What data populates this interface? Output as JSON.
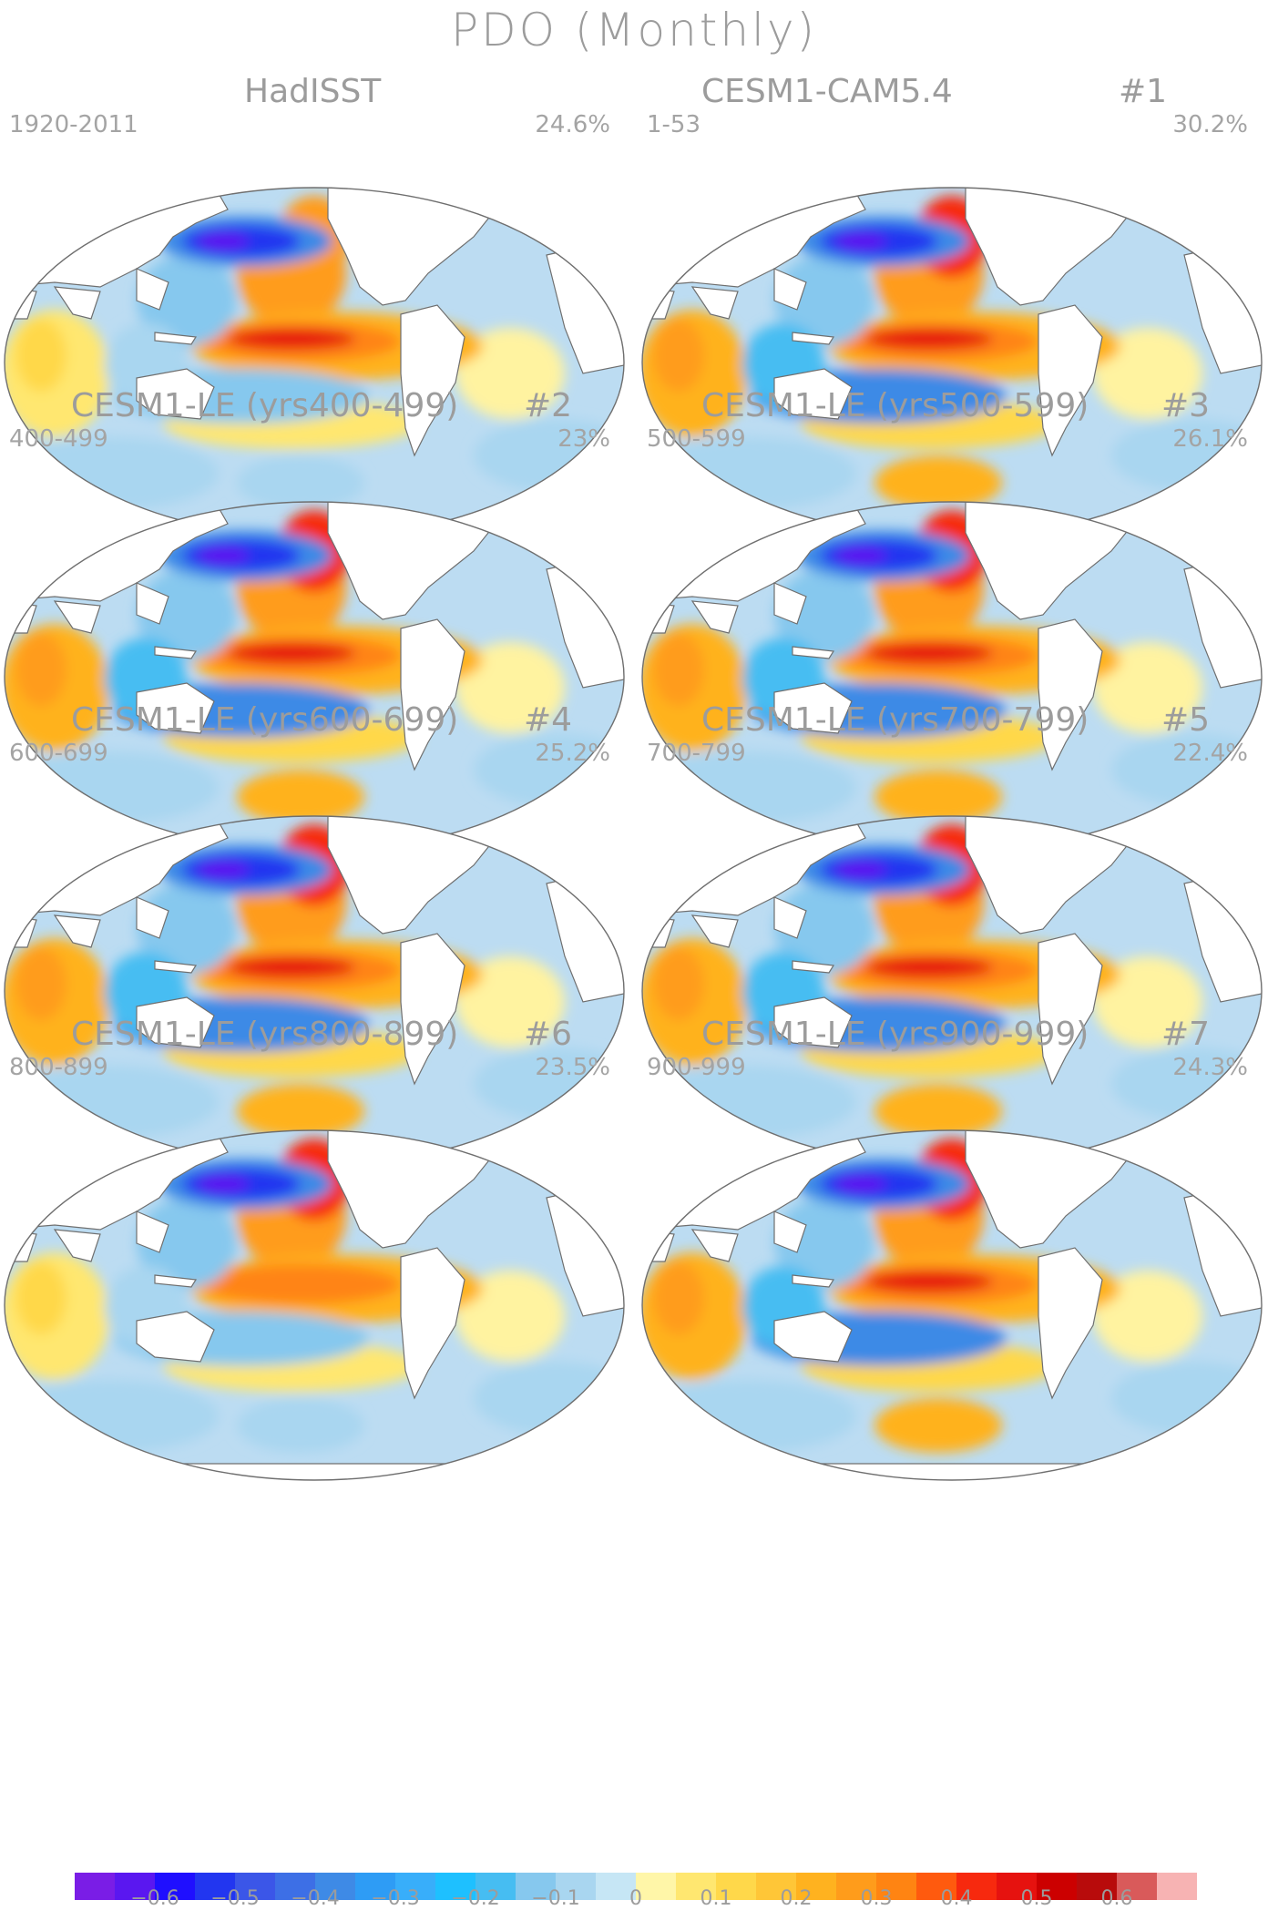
{
  "title": "PDO (Monthly)",
  "panels": [
    {
      "title": "HadISST",
      "num": "",
      "years": "1920-2011",
      "pct": "24.6%",
      "variant": "obs"
    },
    {
      "title": "CESM1-CAM5.4",
      "num": "#1",
      "years": "1-53",
      "pct": "30.2%",
      "variant": "strong"
    },
    {
      "title": "CESM1-LE (yrs400-499)",
      "num": "#2",
      "years": "400-499",
      "pct": "23%",
      "variant": "model"
    },
    {
      "title": "CESM1-LE (yrs500-599)",
      "num": "#3",
      "years": "500-599",
      "pct": "26.1%",
      "variant": "model"
    },
    {
      "title": "CESM1-LE (yrs600-699)",
      "num": "#4",
      "years": "600-699",
      "pct": "25.2%",
      "variant": "model"
    },
    {
      "title": "CESM1-LE (yrs700-799)",
      "num": "#5",
      "years": "700-799",
      "pct": "22.4%",
      "variant": "model"
    },
    {
      "title": "CESM1-LE (yrs800-899)",
      "num": "#6",
      "years": "800-899",
      "pct": "23.5%",
      "variant": "weak"
    },
    {
      "title": "CESM1-LE (yrs900-999)",
      "num": "#7",
      "years": "900-999",
      "pct": "24.3%",
      "variant": "model"
    }
  ],
  "colorbar": {
    "colors": [
      "#7a1de6",
      "#5a17f0",
      "#1f0fff",
      "#2236f0",
      "#3b56e8",
      "#3d6fe6",
      "#3e8ae6",
      "#2e9cf5",
      "#38aefa",
      "#1ec0ff",
      "#46bdf2",
      "#86c8ee",
      "#a9d6f0",
      "#c6e6f5",
      "#fff6a8",
      "#ffe770",
      "#ffd84a",
      "#ffc637",
      "#ffb21f",
      "#ff9c1b",
      "#ff8412",
      "#ff5a0e",
      "#f7290e",
      "#e6120f",
      "#cc0000",
      "#b80b0b",
      "#d95a5a",
      "#f7b3b3"
    ],
    "ticks": [
      "−0.6",
      "−0.5",
      "−0.4",
      "−0.3",
      "−0.2",
      "−0.1",
      "0",
      "0.1",
      "0.2",
      "0.3",
      "0.4",
      "0.5",
      "0.6"
    ]
  }
}
